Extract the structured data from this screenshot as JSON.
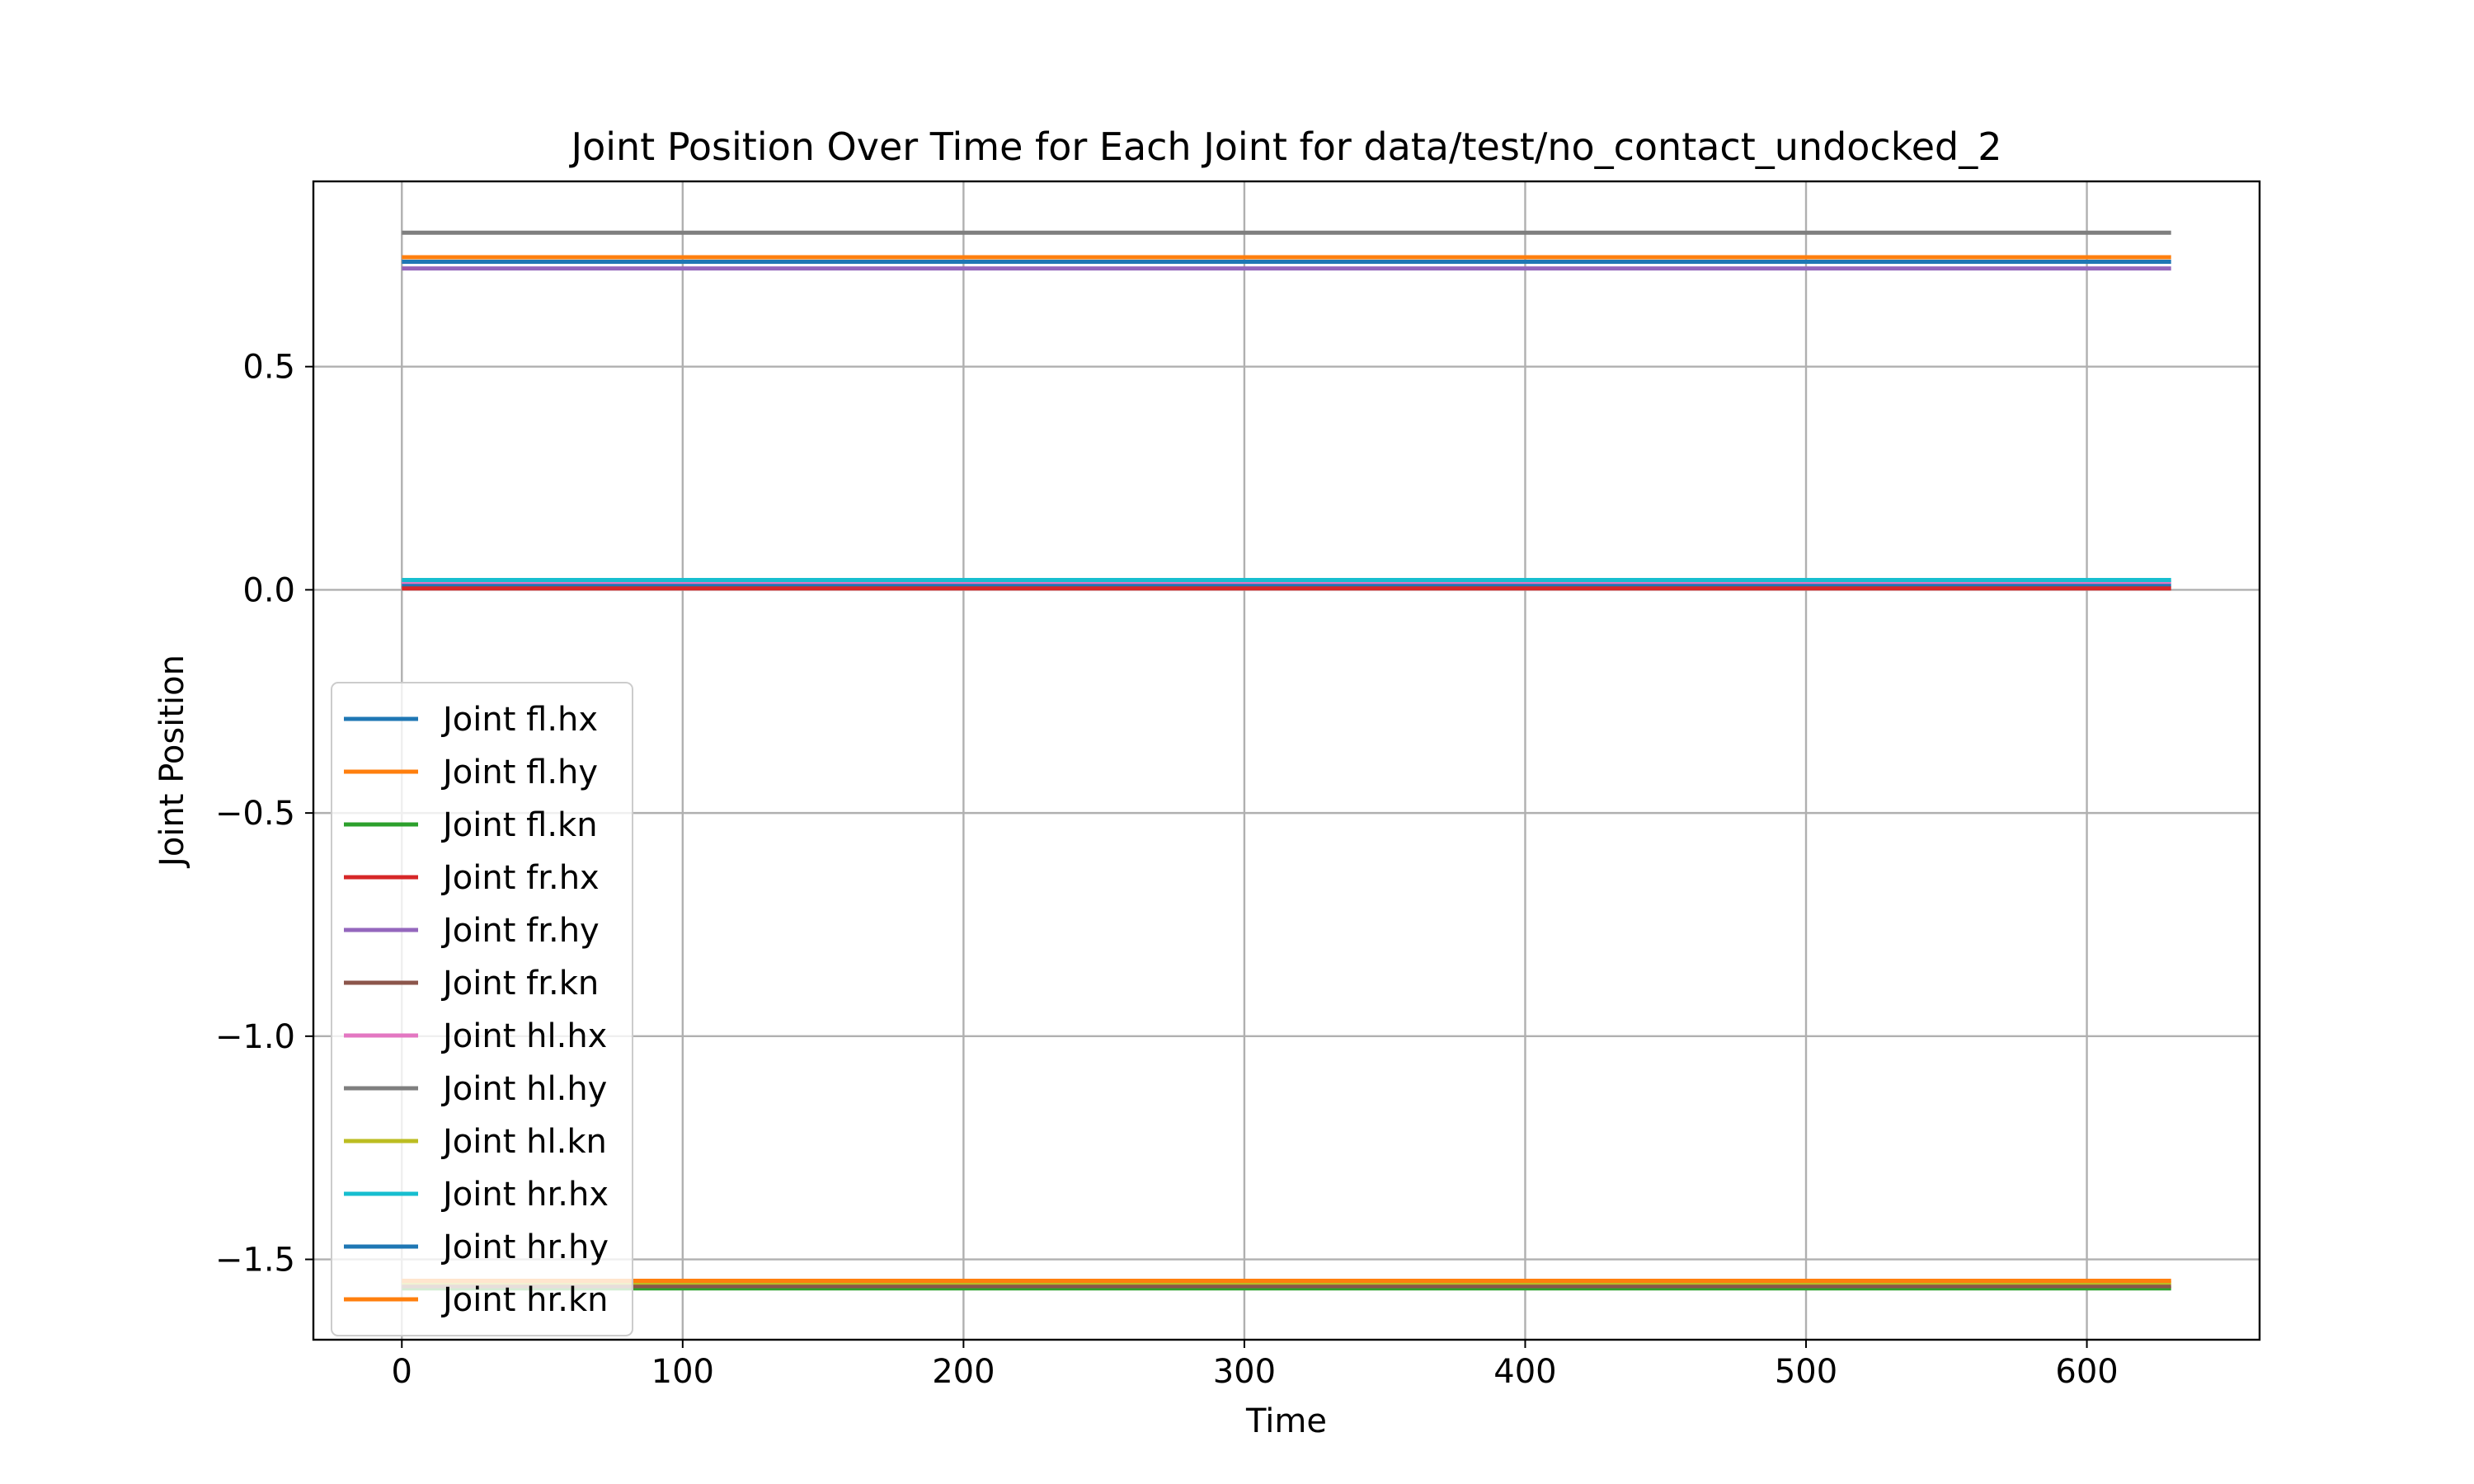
{
  "chart_data": {
    "type": "line",
    "title": "Joint Position Over Time for Each Joint for data/test/no_contact_undocked_2",
    "xlabel": "Time",
    "ylabel": "Joint Position",
    "xlim": [
      -31.5,
      661.5
    ],
    "ylim": [
      -1.68,
      0.915
    ],
    "xticks": [
      0,
      100,
      200,
      300,
      400,
      500,
      600
    ],
    "xtick_labels": [
      "0",
      "100",
      "200",
      "300",
      "400",
      "500",
      "600"
    ],
    "yticks": [
      -1.5,
      -1.0,
      -0.5,
      0.0,
      0.5
    ],
    "ytick_labels": [
      "−1.5",
      "−1.0",
      "−0.5",
      "0.0",
      "0.5"
    ],
    "grid": true,
    "legend_position": "lower-left",
    "x": [
      0,
      630
    ],
    "series": [
      {
        "name": "Joint fl.hx",
        "color": "#1f77b4",
        "values": [
          0.01,
          0.01
        ]
      },
      {
        "name": "Joint fl.hy",
        "color": "#ff7f0e",
        "values": [
          0.745,
          0.745
        ]
      },
      {
        "name": "Joint fl.kn",
        "color": "#2ca02c",
        "values": [
          -1.565,
          -1.565
        ]
      },
      {
        "name": "Joint fr.hx",
        "color": "#d62728",
        "values": [
          0.003,
          0.003
        ]
      },
      {
        "name": "Joint fr.hy",
        "color": "#9467bd",
        "values": [
          0.72,
          0.72
        ]
      },
      {
        "name": "Joint fr.kn",
        "color": "#8c564b",
        "values": [
          -1.56,
          -1.56
        ]
      },
      {
        "name": "Joint hl.hx",
        "color": "#e377c2",
        "values": [
          0.018,
          0.018
        ]
      },
      {
        "name": "Joint hl.hy",
        "color": "#7f7f7f",
        "values": [
          0.8,
          0.8
        ]
      },
      {
        "name": "Joint hl.kn",
        "color": "#bcbd22",
        "values": [
          -1.552,
          -1.552
        ]
      },
      {
        "name": "Joint hr.hx",
        "color": "#17becf",
        "values": [
          0.022,
          0.022
        ]
      },
      {
        "name": "Joint hr.hy",
        "color": "#1f77b4",
        "values": [
          0.735,
          0.735
        ]
      },
      {
        "name": "Joint hr.kn",
        "color": "#ff7f0e",
        "values": [
          -1.548,
          -1.548
        ]
      }
    ]
  }
}
